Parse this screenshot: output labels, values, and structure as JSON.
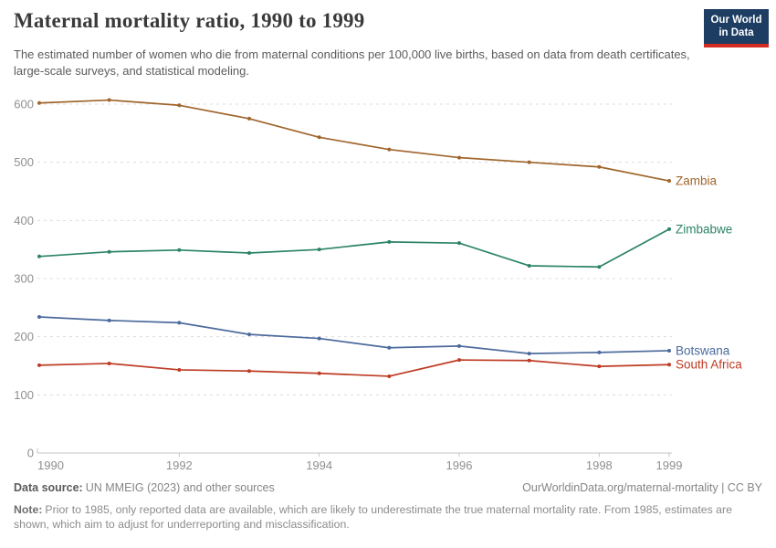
{
  "header": {
    "title": "Maternal mortality ratio, 1990 to 1999",
    "subtitle": "The estimated number of women who die from maternal conditions per 100,000 live births, based on data from death certificates, large-scale surveys, and statistical modeling.",
    "logo": {
      "line1": "Our World",
      "line2": "in Data",
      "bg_color": "#1d3d63",
      "accent_color": "#d42b21"
    }
  },
  "chart_data": {
    "type": "line",
    "title": "Maternal mortality ratio, 1990 to 1999",
    "xlabel": "",
    "ylabel": "",
    "x": [
      1990,
      1991,
      1992,
      1993,
      1994,
      1995,
      1996,
      1997,
      1998,
      1999
    ],
    "x_tick_labels": [
      "1990",
      "1992",
      "1994",
      "1996",
      "1998",
      "1999"
    ],
    "y_ticks": [
      0,
      100,
      200,
      300,
      400,
      500,
      600
    ],
    "ylim": [
      0,
      600
    ],
    "grid": "horizontal-dashed",
    "legend_position": "line-end-labels",
    "series": [
      {
        "name": "Zambia",
        "color": "#A0652C",
        "values": [
          602,
          607,
          598,
          575,
          543,
          522,
          508,
          500,
          492,
          468
        ]
      },
      {
        "name": "Zimbabwe",
        "color": "#2C8465",
        "values": [
          338,
          346,
          349,
          344,
          350,
          363,
          361,
          322,
          320,
          385
        ]
      },
      {
        "name": "Botswana",
        "color": "#4C6A9C",
        "values": [
          234,
          228,
          224,
          204,
          197,
          181,
          184,
          171,
          173,
          176
        ]
      },
      {
        "name": "South Africa",
        "color": "#BE3B24",
        "values": [
          151,
          154,
          143,
          141,
          137,
          132,
          160,
          159,
          149,
          152
        ]
      }
    ]
  },
  "footer": {
    "source_label": "Data source:",
    "source_text": "UN MMEIG (2023) and other sources",
    "link_text": "OurWorldinData.org/maternal-mortality | CC BY",
    "note_label": "Note:",
    "note_text": "Prior to 1985, only reported data are available, which are likely to underestimate the true maternal mortality rate. From 1985, estimates are shown, which aim to adjust for underreporting and misclassification."
  }
}
